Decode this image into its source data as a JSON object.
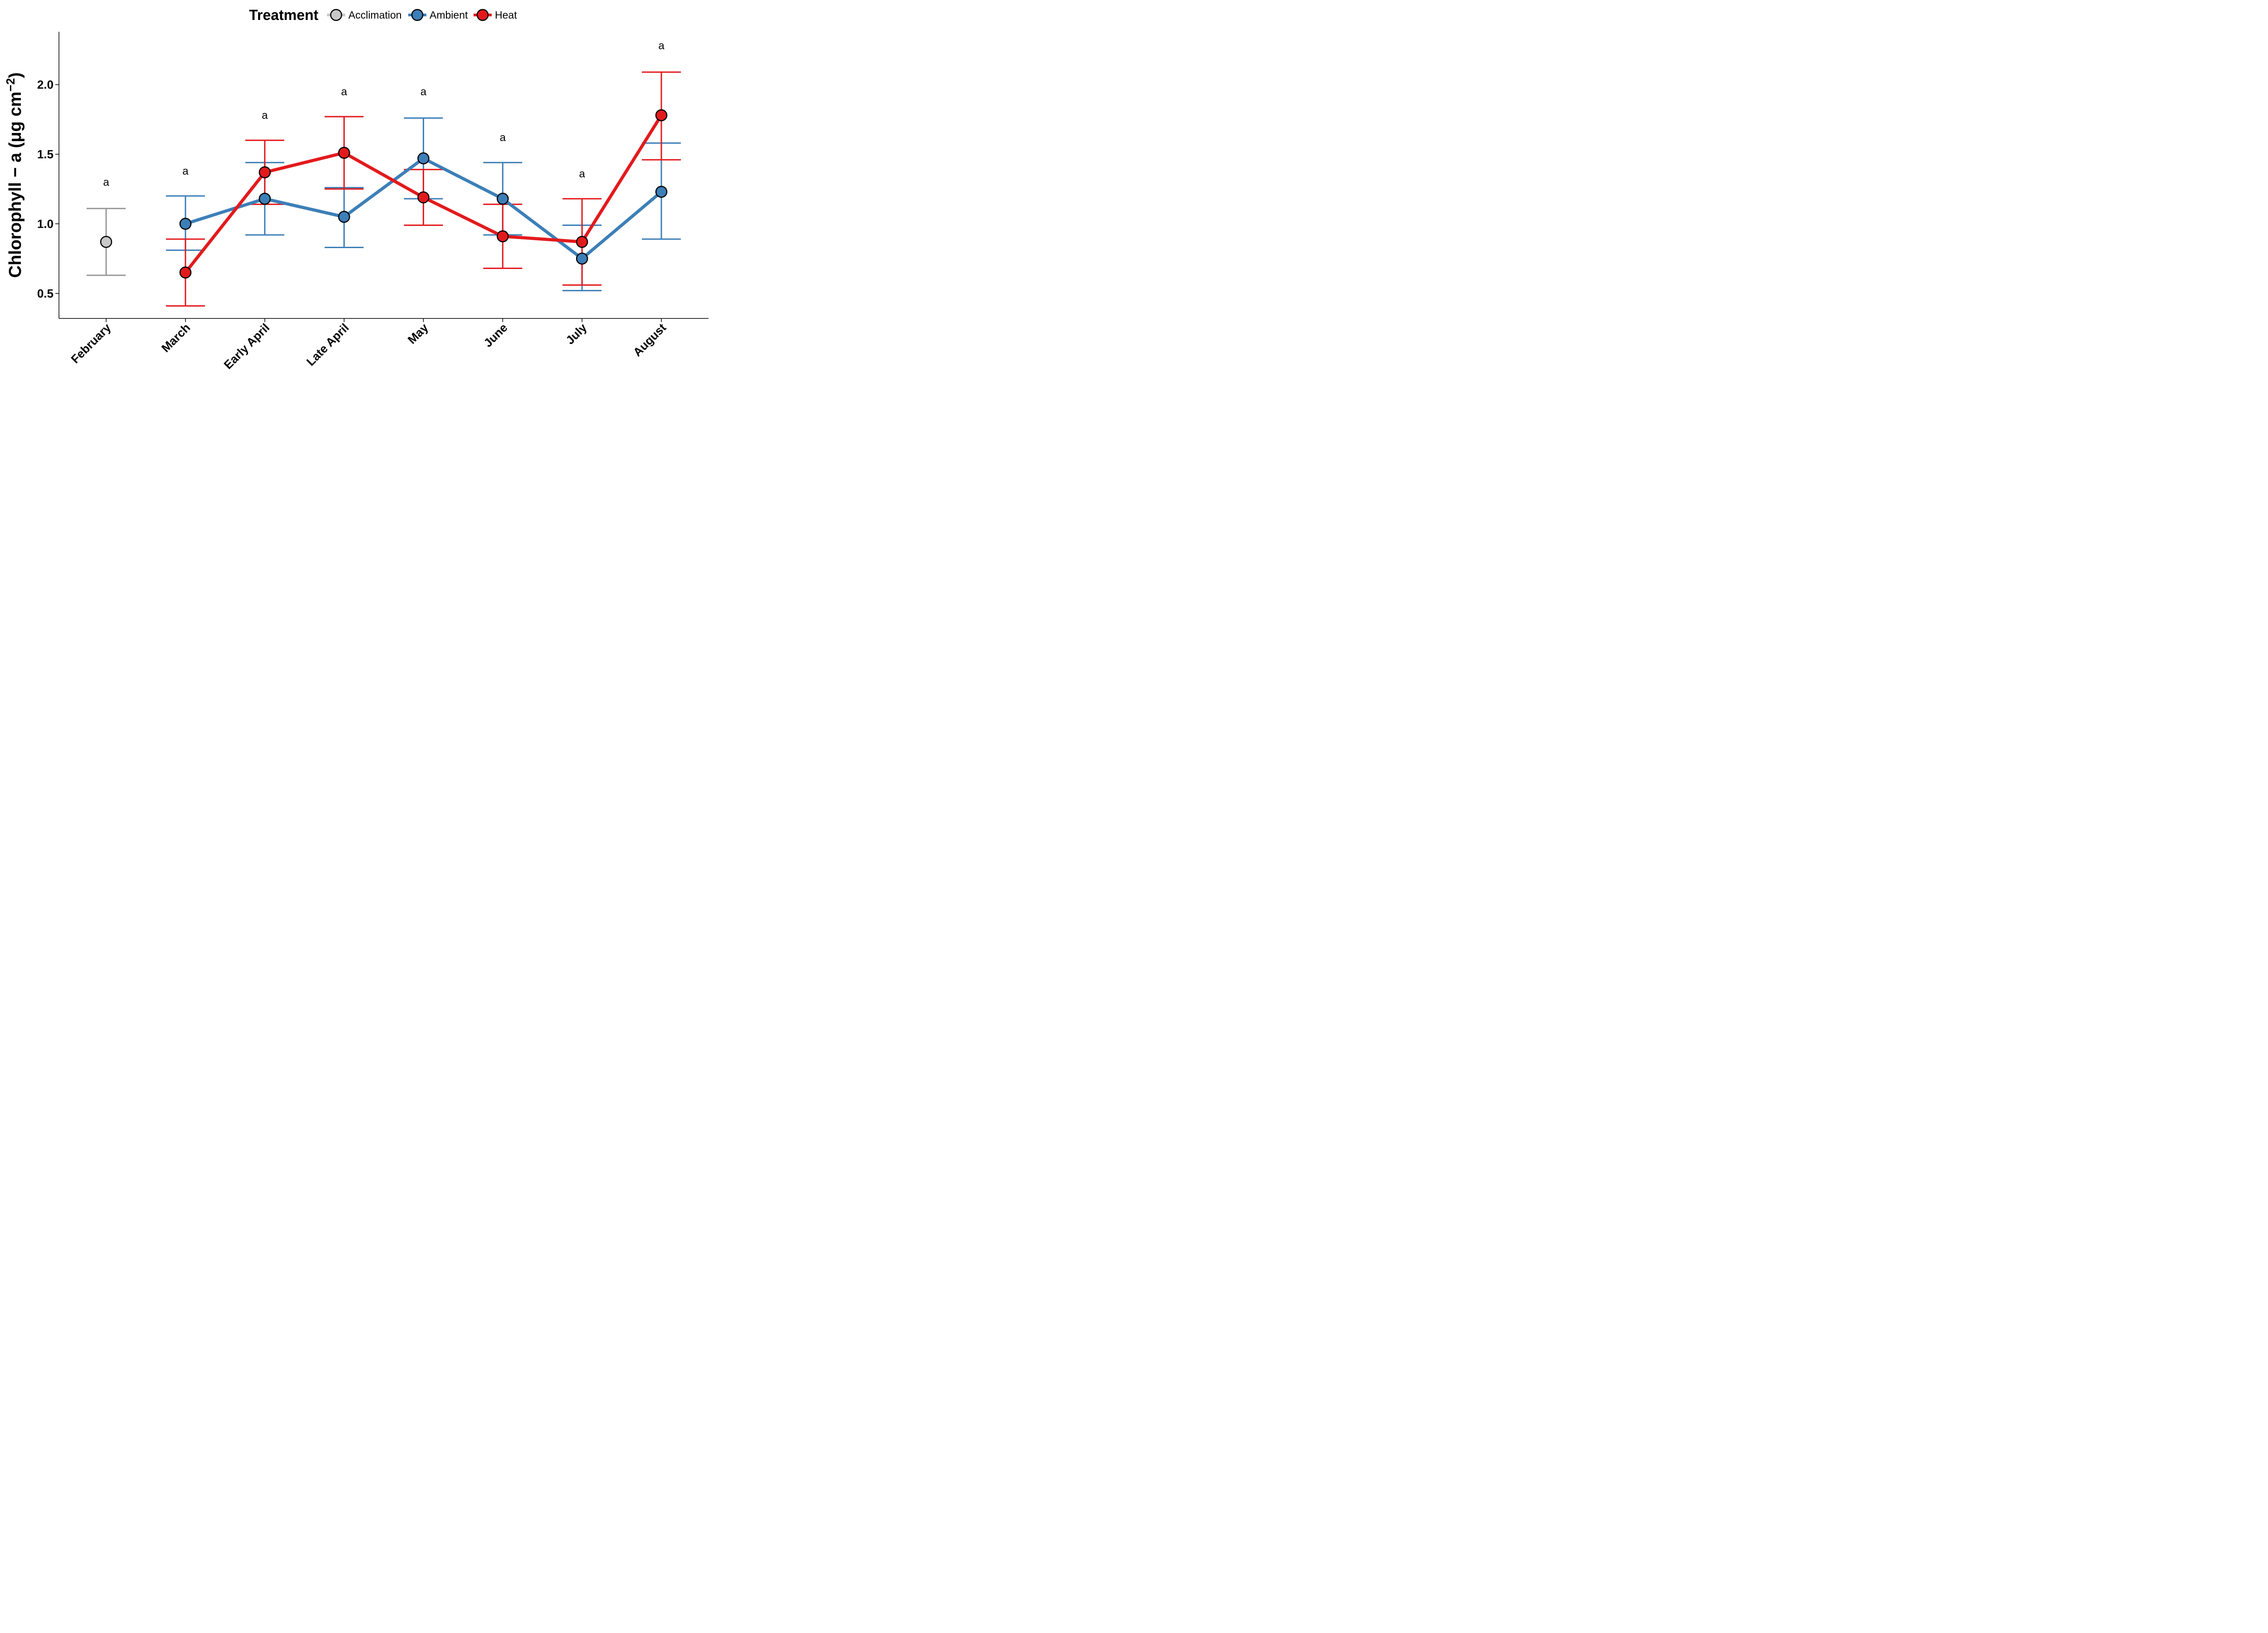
{
  "chart_data": {
    "type": "line",
    "title": "",
    "xlabel": "",
    "ylabel": "Chlorophyll − a (μg cm",
    "ylabel_superscript": "−2",
    "ylabel_close": ")",
    "ylim": [
      0.32,
      2.38
    ],
    "yticks": [
      0.5,
      1.0,
      1.5,
      2.0
    ],
    "ytick_labels": [
      "0.5",
      "1.0",
      "1.5",
      "2.0"
    ],
    "grid": false,
    "legend_position": "top",
    "legend_title": "Treatment",
    "categories": [
      "February",
      "March",
      "Early April",
      "Late April",
      "May",
      "June",
      "July",
      "August"
    ],
    "significance_labels": [
      {
        "category": "February",
        "label": "a",
        "y": 1.3
      },
      {
        "category": "March",
        "label": "a",
        "y": 1.38
      },
      {
        "category": "Early April",
        "label": "a",
        "y": 1.78
      },
      {
        "category": "Late April",
        "label": "a",
        "y": 1.95
      },
      {
        "category": "May",
        "label": "a",
        "y": 1.95
      },
      {
        "category": "June",
        "label": "a",
        "y": 1.62
      },
      {
        "category": "July",
        "label": "a",
        "y": 1.36
      },
      {
        "category": "August",
        "label": "a",
        "y": 2.28
      }
    ],
    "series": [
      {
        "name": "Acclimation",
        "color": "#c8c8c8",
        "error_color": "#999999",
        "points": [
          {
            "category": "February",
            "y": 0.87,
            "lower": 0.63,
            "upper": 1.11
          }
        ]
      },
      {
        "name": "Ambient",
        "color": "#3c7fb8",
        "error_color": "#3c7fb8",
        "points": [
          {
            "category": "March",
            "y": 1.0,
            "lower": 0.81,
            "upper": 1.2
          },
          {
            "category": "Early April",
            "y": 1.18,
            "lower": 0.92,
            "upper": 1.44
          },
          {
            "category": "Late April",
            "y": 1.05,
            "lower": 0.83,
            "upper": 1.26
          },
          {
            "category": "May",
            "y": 1.47,
            "lower": 1.18,
            "upper": 1.76
          },
          {
            "category": "June",
            "y": 1.18,
            "lower": 0.92,
            "upper": 1.44
          },
          {
            "category": "July",
            "y": 0.75,
            "lower": 0.52,
            "upper": 0.99
          },
          {
            "category": "August",
            "y": 1.23,
            "lower": 0.89,
            "upper": 1.58
          }
        ]
      },
      {
        "name": "Heat",
        "color": "#e31a1c",
        "error_color": "#e31a1c",
        "points": [
          {
            "category": "March",
            "y": 0.65,
            "lower": 0.41,
            "upper": 0.89
          },
          {
            "category": "Early April",
            "y": 1.37,
            "lower": 1.14,
            "upper": 1.6
          },
          {
            "category": "Late April",
            "y": 1.51,
            "lower": 1.25,
            "upper": 1.77
          },
          {
            "category": "May",
            "y": 1.19,
            "lower": 0.99,
            "upper": 1.39
          },
          {
            "category": "June",
            "y": 0.91,
            "lower": 0.68,
            "upper": 1.14
          },
          {
            "category": "July",
            "y": 0.87,
            "lower": 0.56,
            "upper": 1.18
          },
          {
            "category": "August",
            "y": 1.78,
            "lower": 1.46,
            "upper": 2.09
          }
        ]
      }
    ]
  }
}
